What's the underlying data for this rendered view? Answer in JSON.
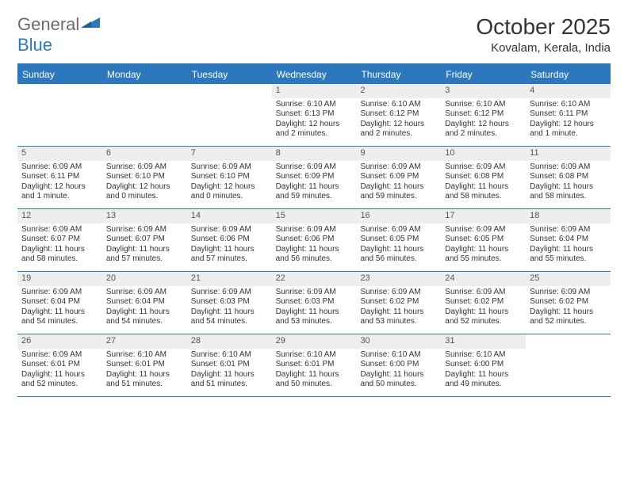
{
  "logo": {
    "word1": "General",
    "word2": "Blue"
  },
  "title": "October 2025",
  "location": "Kovalam, Kerala, India",
  "colors": {
    "brand": "#2d78bd",
    "gray_text": "#6a6a6a",
    "day_bg": "#eeeeee",
    "text": "#333333"
  },
  "dow": [
    "Sunday",
    "Monday",
    "Tuesday",
    "Wednesday",
    "Thursday",
    "Friday",
    "Saturday"
  ],
  "weeks": [
    [
      {
        "n": "",
        "sr": "",
        "ss": "",
        "dl": ""
      },
      {
        "n": "",
        "sr": "",
        "ss": "",
        "dl": ""
      },
      {
        "n": "",
        "sr": "",
        "ss": "",
        "dl": ""
      },
      {
        "n": "1",
        "sr": "Sunrise: 6:10 AM",
        "ss": "Sunset: 6:13 PM",
        "dl": "Daylight: 12 hours and 2 minutes."
      },
      {
        "n": "2",
        "sr": "Sunrise: 6:10 AM",
        "ss": "Sunset: 6:12 PM",
        "dl": "Daylight: 12 hours and 2 minutes."
      },
      {
        "n": "3",
        "sr": "Sunrise: 6:10 AM",
        "ss": "Sunset: 6:12 PM",
        "dl": "Daylight: 12 hours and 2 minutes."
      },
      {
        "n": "4",
        "sr": "Sunrise: 6:10 AM",
        "ss": "Sunset: 6:11 PM",
        "dl": "Daylight: 12 hours and 1 minute."
      }
    ],
    [
      {
        "n": "5",
        "sr": "Sunrise: 6:09 AM",
        "ss": "Sunset: 6:11 PM",
        "dl": "Daylight: 12 hours and 1 minute."
      },
      {
        "n": "6",
        "sr": "Sunrise: 6:09 AM",
        "ss": "Sunset: 6:10 PM",
        "dl": "Daylight: 12 hours and 0 minutes."
      },
      {
        "n": "7",
        "sr": "Sunrise: 6:09 AM",
        "ss": "Sunset: 6:10 PM",
        "dl": "Daylight: 12 hours and 0 minutes."
      },
      {
        "n": "8",
        "sr": "Sunrise: 6:09 AM",
        "ss": "Sunset: 6:09 PM",
        "dl": "Daylight: 11 hours and 59 minutes."
      },
      {
        "n": "9",
        "sr": "Sunrise: 6:09 AM",
        "ss": "Sunset: 6:09 PM",
        "dl": "Daylight: 11 hours and 59 minutes."
      },
      {
        "n": "10",
        "sr": "Sunrise: 6:09 AM",
        "ss": "Sunset: 6:08 PM",
        "dl": "Daylight: 11 hours and 58 minutes."
      },
      {
        "n": "11",
        "sr": "Sunrise: 6:09 AM",
        "ss": "Sunset: 6:08 PM",
        "dl": "Daylight: 11 hours and 58 minutes."
      }
    ],
    [
      {
        "n": "12",
        "sr": "Sunrise: 6:09 AM",
        "ss": "Sunset: 6:07 PM",
        "dl": "Daylight: 11 hours and 58 minutes."
      },
      {
        "n": "13",
        "sr": "Sunrise: 6:09 AM",
        "ss": "Sunset: 6:07 PM",
        "dl": "Daylight: 11 hours and 57 minutes."
      },
      {
        "n": "14",
        "sr": "Sunrise: 6:09 AM",
        "ss": "Sunset: 6:06 PM",
        "dl": "Daylight: 11 hours and 57 minutes."
      },
      {
        "n": "15",
        "sr": "Sunrise: 6:09 AM",
        "ss": "Sunset: 6:06 PM",
        "dl": "Daylight: 11 hours and 56 minutes."
      },
      {
        "n": "16",
        "sr": "Sunrise: 6:09 AM",
        "ss": "Sunset: 6:05 PM",
        "dl": "Daylight: 11 hours and 56 minutes."
      },
      {
        "n": "17",
        "sr": "Sunrise: 6:09 AM",
        "ss": "Sunset: 6:05 PM",
        "dl": "Daylight: 11 hours and 55 minutes."
      },
      {
        "n": "18",
        "sr": "Sunrise: 6:09 AM",
        "ss": "Sunset: 6:04 PM",
        "dl": "Daylight: 11 hours and 55 minutes."
      }
    ],
    [
      {
        "n": "19",
        "sr": "Sunrise: 6:09 AM",
        "ss": "Sunset: 6:04 PM",
        "dl": "Daylight: 11 hours and 54 minutes."
      },
      {
        "n": "20",
        "sr": "Sunrise: 6:09 AM",
        "ss": "Sunset: 6:04 PM",
        "dl": "Daylight: 11 hours and 54 minutes."
      },
      {
        "n": "21",
        "sr": "Sunrise: 6:09 AM",
        "ss": "Sunset: 6:03 PM",
        "dl": "Daylight: 11 hours and 54 minutes."
      },
      {
        "n": "22",
        "sr": "Sunrise: 6:09 AM",
        "ss": "Sunset: 6:03 PM",
        "dl": "Daylight: 11 hours and 53 minutes."
      },
      {
        "n": "23",
        "sr": "Sunrise: 6:09 AM",
        "ss": "Sunset: 6:02 PM",
        "dl": "Daylight: 11 hours and 53 minutes."
      },
      {
        "n": "24",
        "sr": "Sunrise: 6:09 AM",
        "ss": "Sunset: 6:02 PM",
        "dl": "Daylight: 11 hours and 52 minutes."
      },
      {
        "n": "25",
        "sr": "Sunrise: 6:09 AM",
        "ss": "Sunset: 6:02 PM",
        "dl": "Daylight: 11 hours and 52 minutes."
      }
    ],
    [
      {
        "n": "26",
        "sr": "Sunrise: 6:09 AM",
        "ss": "Sunset: 6:01 PM",
        "dl": "Daylight: 11 hours and 52 minutes."
      },
      {
        "n": "27",
        "sr": "Sunrise: 6:10 AM",
        "ss": "Sunset: 6:01 PM",
        "dl": "Daylight: 11 hours and 51 minutes."
      },
      {
        "n": "28",
        "sr": "Sunrise: 6:10 AM",
        "ss": "Sunset: 6:01 PM",
        "dl": "Daylight: 11 hours and 51 minutes."
      },
      {
        "n": "29",
        "sr": "Sunrise: 6:10 AM",
        "ss": "Sunset: 6:01 PM",
        "dl": "Daylight: 11 hours and 50 minutes."
      },
      {
        "n": "30",
        "sr": "Sunrise: 6:10 AM",
        "ss": "Sunset: 6:00 PM",
        "dl": "Daylight: 11 hours and 50 minutes."
      },
      {
        "n": "31",
        "sr": "Sunrise: 6:10 AM",
        "ss": "Sunset: 6:00 PM",
        "dl": "Daylight: 11 hours and 49 minutes."
      },
      {
        "n": "",
        "sr": "",
        "ss": "",
        "dl": ""
      }
    ]
  ]
}
